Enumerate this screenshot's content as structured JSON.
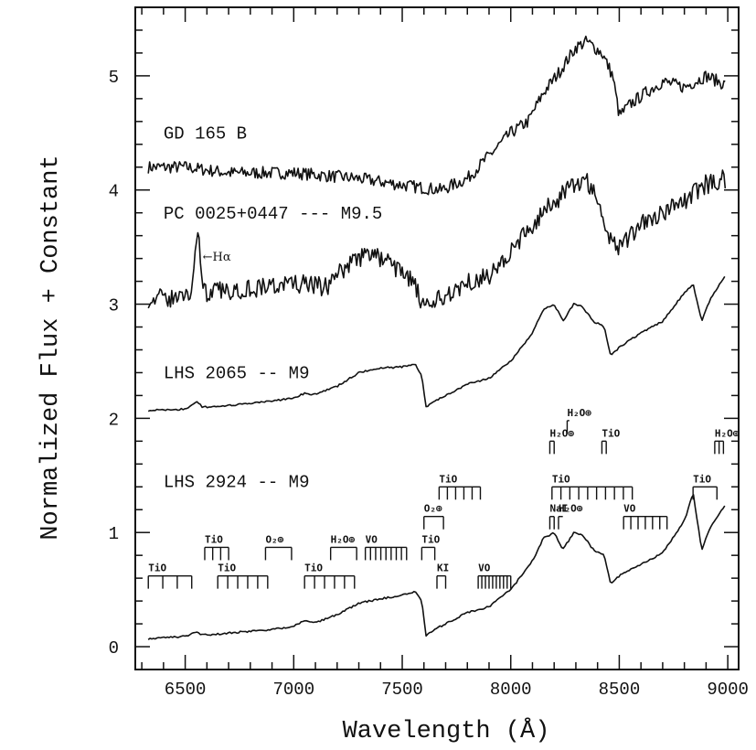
{
  "chart_data": {
    "type": "line",
    "title": "",
    "xlabel": "Wavelength (Å)",
    "ylabel": "Normalized Flux + Constant",
    "xlim": [
      6270,
      9050
    ],
    "ylim": [
      -0.2,
      5.6
    ],
    "x_ticks": [
      6500,
      7000,
      7500,
      8000,
      8500,
      9000
    ],
    "y_ticks": [
      0,
      1,
      2,
      3,
      4,
      5
    ],
    "grid": false,
    "series": [
      {
        "name": "GD 165 B",
        "label_at": [
          6400,
          4.45
        ],
        "noise": 0.055,
        "points": [
          [
            6330,
            4.2
          ],
          [
            6500,
            4.2
          ],
          [
            6700,
            4.15
          ],
          [
            7000,
            4.15
          ],
          [
            7300,
            4.1
          ],
          [
            7550,
            4.03
          ],
          [
            7680,
            4.0
          ],
          [
            7800,
            4.1
          ],
          [
            7900,
            4.3
          ],
          [
            8000,
            4.5
          ],
          [
            8080,
            4.6
          ],
          [
            8150,
            4.85
          ],
          [
            8230,
            5.05
          ],
          [
            8300,
            5.25
          ],
          [
            8350,
            5.3
          ],
          [
            8420,
            5.2
          ],
          [
            8470,
            5.0
          ],
          [
            8500,
            4.65
          ],
          [
            8550,
            4.75
          ],
          [
            8620,
            4.85
          ],
          [
            8700,
            4.95
          ],
          [
            8800,
            4.9
          ],
          [
            8900,
            5.0
          ],
          [
            8990,
            4.92
          ]
        ]
      },
      {
        "name": "PC 0025+0447 --- M9.5",
        "label_at": [
          6400,
          3.75
        ],
        "noise": 0.085,
        "points": [
          [
            6330,
            3.05
          ],
          [
            6450,
            3.05
          ],
          [
            6530,
            3.1
          ],
          [
            6548,
            3.55
          ],
          [
            6565,
            3.6
          ],
          [
            6580,
            3.1
          ],
          [
            6700,
            3.12
          ],
          [
            7000,
            3.18
          ],
          [
            7150,
            3.15
          ],
          [
            7250,
            3.35
          ],
          [
            7350,
            3.45
          ],
          [
            7450,
            3.35
          ],
          [
            7550,
            3.2
          ],
          [
            7600,
            2.95
          ],
          [
            7680,
            3.05
          ],
          [
            7800,
            3.2
          ],
          [
            7900,
            3.25
          ],
          [
            8000,
            3.45
          ],
          [
            8100,
            3.7
          ],
          [
            8200,
            3.9
          ],
          [
            8300,
            4.05
          ],
          [
            8350,
            4.1
          ],
          [
            8400,
            3.9
          ],
          [
            8450,
            3.6
          ],
          [
            8500,
            3.5
          ],
          [
            8550,
            3.6
          ],
          [
            8620,
            3.75
          ],
          [
            8700,
            3.8
          ],
          [
            8800,
            3.9
          ],
          [
            8900,
            4.05
          ],
          [
            8990,
            4.1
          ]
        ]
      },
      {
        "name": "LHS 2065 -- M9",
        "label_at": [
          6400,
          2.35
        ],
        "noise": 0.008,
        "points": [
          [
            6330,
            2.07
          ],
          [
            6500,
            2.08
          ],
          [
            6555,
            2.14
          ],
          [
            6580,
            2.1
          ],
          [
            6700,
            2.11
          ],
          [
            6900,
            2.15
          ],
          [
            7000,
            2.18
          ],
          [
            7050,
            2.22
          ],
          [
            7100,
            2.21
          ],
          [
            7200,
            2.28
          ],
          [
            7300,
            2.4
          ],
          [
            7400,
            2.44
          ],
          [
            7500,
            2.45
          ],
          [
            7560,
            2.47
          ],
          [
            7590,
            2.38
          ],
          [
            7610,
            2.1
          ],
          [
            7650,
            2.15
          ],
          [
            7700,
            2.2
          ],
          [
            7800,
            2.3
          ],
          [
            7900,
            2.35
          ],
          [
            8000,
            2.5
          ],
          [
            8100,
            2.75
          ],
          [
            8150,
            2.95
          ],
          [
            8200,
            3.0
          ],
          [
            8240,
            2.85
          ],
          [
            8290,
            3.0
          ],
          [
            8330,
            2.98
          ],
          [
            8380,
            2.85
          ],
          [
            8430,
            2.8
          ],
          [
            8460,
            2.55
          ],
          [
            8500,
            2.62
          ],
          [
            8600,
            2.75
          ],
          [
            8700,
            2.85
          ],
          [
            8800,
            3.1
          ],
          [
            8840,
            3.18
          ],
          [
            8880,
            2.85
          ],
          [
            8920,
            3.05
          ],
          [
            8990,
            3.25
          ]
        ]
      },
      {
        "name": "LHS 2924 -- M9",
        "label_at": [
          6400,
          1.4
        ],
        "noise": 0.008,
        "points": [
          [
            6330,
            0.07
          ],
          [
            6500,
            0.09
          ],
          [
            6555,
            0.13
          ],
          [
            6580,
            0.1
          ],
          [
            6700,
            0.12
          ],
          [
            6900,
            0.15
          ],
          [
            7000,
            0.18
          ],
          [
            7050,
            0.23
          ],
          [
            7100,
            0.21
          ],
          [
            7200,
            0.28
          ],
          [
            7300,
            0.38
          ],
          [
            7400,
            0.42
          ],
          [
            7500,
            0.45
          ],
          [
            7560,
            0.48
          ],
          [
            7590,
            0.4
          ],
          [
            7610,
            0.1
          ],
          [
            7650,
            0.15
          ],
          [
            7700,
            0.2
          ],
          [
            7800,
            0.3
          ],
          [
            7900,
            0.35
          ],
          [
            8000,
            0.5
          ],
          [
            8100,
            0.75
          ],
          [
            8150,
            0.95
          ],
          [
            8200,
            1.0
          ],
          [
            8240,
            0.85
          ],
          [
            8290,
            1.0
          ],
          [
            8330,
            0.98
          ],
          [
            8380,
            0.85
          ],
          [
            8430,
            0.8
          ],
          [
            8460,
            0.55
          ],
          [
            8500,
            0.62
          ],
          [
            8600,
            0.72
          ],
          [
            8700,
            0.82
          ],
          [
            8800,
            1.1
          ],
          [
            8840,
            1.35
          ],
          [
            8880,
            0.85
          ],
          [
            8920,
            1.05
          ],
          [
            8990,
            1.25
          ]
        ]
      }
    ],
    "annotations": [
      {
        "text": "←Hα",
        "x": 6580,
        "y": 3.38,
        "kind": "halpha"
      },
      {
        "text": "TiO",
        "x": 6330,
        "x2": 6530,
        "y": 0.62,
        "ticks": 4
      },
      {
        "text": "TiO",
        "x": 6590,
        "x2": 6700,
        "y": 0.87,
        "ticks": 4
      },
      {
        "text": "TiO",
        "x": 6650,
        "x2": 6880,
        "y": 0.62,
        "ticks": 6
      },
      {
        "text": "O₂⊕",
        "x": 6870,
        "x2": 6990,
        "y": 0.87,
        "ticks": 2
      },
      {
        "text": "TiO",
        "x": 7050,
        "x2": 7280,
        "y": 0.62,
        "ticks": 6
      },
      {
        "text": "H₂O⊕",
        "x": 7170,
        "x2": 7290,
        "y": 0.87,
        "ticks": 2
      },
      {
        "text": "VO",
        "x": 7330,
        "x2": 7520,
        "y": 0.87,
        "ticks": 9
      },
      {
        "text": "TiO",
        "x": 7590,
        "x2": 7650,
        "y": 0.87,
        "ticks": 2
      },
      {
        "text": "O₂⊕",
        "x": 7600,
        "x2": 7690,
        "y": 1.14,
        "ticks": 2
      },
      {
        "text": "TiO",
        "x": 7670,
        "x2": 7860,
        "y": 1.4,
        "ticks": 6
      },
      {
        "text": "KI",
        "x": 7660,
        "x2": 7700,
        "y": 0.62,
        "ticks": 2
      },
      {
        "text": "VO",
        "x": 7850,
        "x2": 8000,
        "y": 0.62,
        "ticks": 10
      },
      {
        "text": "NaI",
        "x": 8180,
        "x2": 8200,
        "y": 1.14,
        "ticks": 2
      },
      {
        "text": "H₂O⊕",
        "x": 8220,
        "x2": 8240,
        "y": 1.14,
        "ticks": 1
      },
      {
        "text": "H₂O⊕",
        "x": 8180,
        "x2": 8200,
        "y": 1.8,
        "ticks": 2
      },
      {
        "text": "H₂O⊕",
        "x": 8260,
        "x2": 8270,
        "y": 1.98,
        "ticks": 1
      },
      {
        "text": "TiO",
        "x": 8190,
        "x2": 8560,
        "y": 1.4,
        "ticks": 10
      },
      {
        "text": "TiO",
        "x": 8420,
        "x2": 8440,
        "y": 1.8,
        "ticks": 2
      },
      {
        "text": "VO",
        "x": 8520,
        "x2": 8720,
        "y": 1.14,
        "ticks": 7
      },
      {
        "text": "TiO",
        "x": 8840,
        "x2": 8950,
        "y": 1.4,
        "ticks": 2
      },
      {
        "text": "H₂O⊕",
        "x": 8940,
        "x2": 8980,
        "y": 1.8,
        "ticks": 3
      }
    ]
  }
}
